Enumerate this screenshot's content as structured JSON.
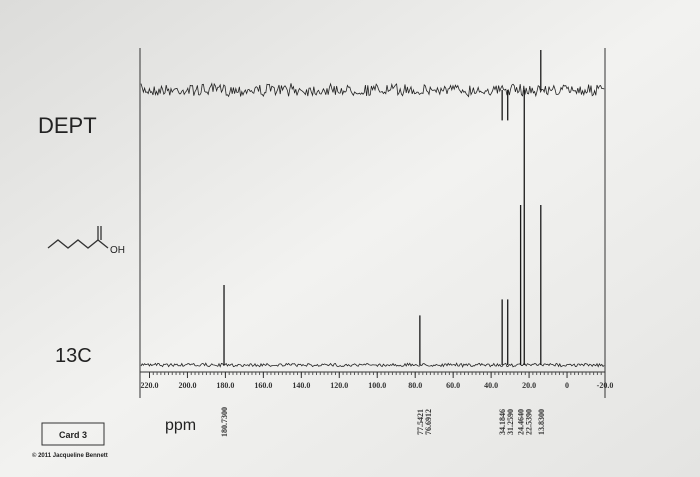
{
  "chart_data": {
    "type": "nmr",
    "spectrum_labels": [
      "DEPT",
      "13C"
    ],
    "molecule_label": "OH",
    "xlabel": "ppm",
    "xlim": [
      225,
      -20
    ],
    "xticks": [
      {
        "value": 220,
        "label": "220.0"
      },
      {
        "value": 200,
        "label": "200.0"
      },
      {
        "value": 180,
        "label": "180.0"
      },
      {
        "value": 160,
        "label": "160.0"
      },
      {
        "value": 140,
        "label": "140.0"
      },
      {
        "value": 120,
        "label": "120.0"
      },
      {
        "value": 100,
        "label": "100.0"
      },
      {
        "value": 80,
        "label": "80.0"
      },
      {
        "value": 60,
        "label": "60.0"
      },
      {
        "value": 40,
        "label": "40.0"
      },
      {
        "value": 20,
        "label": "20.0"
      },
      0,
      {
        "value": -20,
        "label": "-20.0"
      }
    ],
    "series": [
      {
        "name": "DEPT",
        "color": "#1a1a1a",
        "x": [
          34.1846,
          31.259,
          22.539,
          13.83
        ],
        "values": [
          -0.19,
          -0.19,
          -0.72,
          0.25
        ]
      },
      {
        "name": "13C",
        "color": "#1a1a1a",
        "x": [
          180.73,
          77.5421,
          76.6912,
          34.1846,
          31.259,
          24.464,
          22.539,
          13.83
        ],
        "values": [
          0.5,
          0.31,
          null,
          0.41,
          0.41,
          1.0,
          1.0,
          1.0
        ],
        "value_labels": [
          "180.7300",
          "77.5421",
          "76.6912",
          "34.1846",
          "31.2590",
          "24.4640",
          "22.5390",
          "13.8300"
        ]
      }
    ]
  },
  "card": "Card 3",
  "copyright": "© 2011 Jacqueline Bennett"
}
